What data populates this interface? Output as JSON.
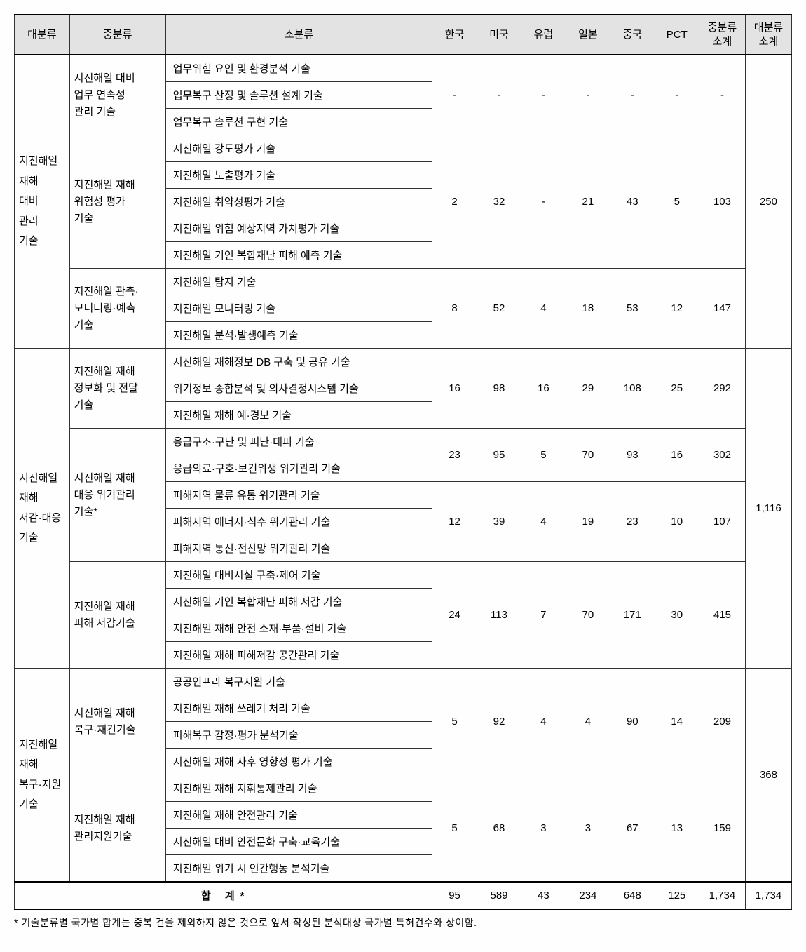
{
  "headers": [
    "대분류",
    "중분류",
    "소분류",
    "한국",
    "미국",
    "유럽",
    "일본",
    "중국",
    "PCT",
    "중분류\n소계",
    "대분류\n소계"
  ],
  "colWidths": [
    "62px",
    "108px",
    "300px",
    "50px",
    "50px",
    "50px",
    "50px",
    "50px",
    "50px",
    "52px",
    "52px"
  ],
  "majors": [
    {
      "label": "지진해일\n재해\n대비\n관리\n기술",
      "total": "250",
      "mids": [
        {
          "label": "지진해일 대비\n업무 연속성\n관리 기술",
          "vals": [
            "-",
            "-",
            "-",
            "-",
            "-",
            "-",
            "-"
          ],
          "subs": [
            "업무위험 요인 및 환경분석 기술",
            "업무복구 산정 및 솔루션 설계 기술",
            "업무복구 솔루션 구현 기술"
          ]
        },
        {
          "label": "지진해일 재해\n위험성 평가\n기술",
          "vals": [
            "2",
            "32",
            "-",
            "21",
            "43",
            "5",
            "103"
          ],
          "subs": [
            "지진해일 강도평가 기술",
            "지진해일 노출평가 기술",
            "지진해일 취약성평가 기술",
            "지진해일 위험 예상지역 가치평가 기술",
            "지진해일 기인 복합재난 피해 예측 기술"
          ]
        },
        {
          "label": "지진해일 관측·\n모니터링·예측\n기술",
          "vals": [
            "8",
            "52",
            "4",
            "18",
            "53",
            "12",
            "147"
          ],
          "subs": [
            "지진해일 탐지 기술",
            "지진해일 모니터링 기술",
            "지진해일 분석·발생예측 기술"
          ]
        }
      ]
    },
    {
      "label": "지진해일\n재해\n저감·대응\n기술",
      "total": "1,116",
      "mids": [
        {
          "label": "지진해일 재해\n정보화 및 전달\n기술",
          "vals": [
            "16",
            "98",
            "16",
            "29",
            "108",
            "25",
            "292"
          ],
          "subs": [
            "지진해일 재해정보 DB 구축 및 공유 기술",
            "위기정보 종합분석 및 의사결정시스템 기술",
            "지진해일 재해 예·경보 기술"
          ]
        },
        {
          "label": "지진해일 재해\n대응 위기관리\n기술*",
          "split": true,
          "groups": [
            {
              "vals": [
                "23",
                "95",
                "5",
                "70",
                "93",
                "16",
                "302"
              ],
              "subs": [
                "응급구조·구난 및 피난·대피 기술",
                "응급의료·구호·보건위생 위기관리 기술"
              ]
            },
            {
              "vals": [
                "12",
                "39",
                "4",
                "19",
                "23",
                "10",
                "107"
              ],
              "subs": [
                "피해지역 물류 유통 위기관리 기술",
                "피해지역 에너지·식수 위기관리 기술",
                "피해지역 통신·전산망 위기관리 기술"
              ]
            }
          ]
        },
        {
          "label": "지진해일 재해\n피해 저감기술",
          "vals": [
            "24",
            "113",
            "7",
            "70",
            "171",
            "30",
            "415"
          ],
          "subs": [
            "지진해일 대비시설 구축·제어 기술",
            "지진해일 기인 복합재난 피해 저감 기술",
            "지진해일 재해 안전 소재·부품·설비 기술",
            "지진해일 재해 피해저감 공간관리 기술"
          ]
        }
      ]
    },
    {
      "label": "지진해일\n재해\n복구·지원\n기술",
      "total": "368",
      "mids": [
        {
          "label": "지진해일 재해\n복구·재건기술",
          "vals": [
            "5",
            "92",
            "4",
            "4",
            "90",
            "14",
            "209"
          ],
          "subs": [
            "공공인프라 복구지원 기술",
            "지진해일 재해 쓰레기 처리 기술",
            "피해복구 감정·평가 분석기술",
            "지진해일 재해 사후 영향성 평가 기술"
          ]
        },
        {
          "label": "지진해일 재해\n관리지원기술",
          "vals": [
            "5",
            "68",
            "3",
            "3",
            "67",
            "13",
            "159"
          ],
          "subs": [
            "지진해일 재해 지휘통제관리 기술",
            "지진해일 재해 안전관리 기술",
            "지진해일 대비 안전문화 구축·교육기술",
            "지진해일 위기 시 인간행동 분석기술"
          ]
        }
      ]
    }
  ],
  "totals": {
    "label": "합 계*",
    "vals": [
      "95",
      "589",
      "43",
      "234",
      "648",
      "125",
      "1,734",
      "1,734"
    ]
  },
  "footnote": "* 기술분류별 국가별 합계는 중복 건을 제외하지 않은 것으로 앞서 작성된 분석대상 국가별 특허건수와 상이함."
}
